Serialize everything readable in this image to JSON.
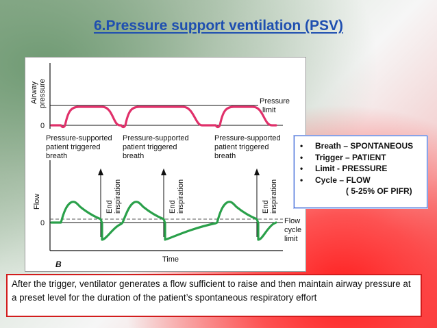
{
  "slide": {
    "title": "6.Pressure support ventilation (PSV)",
    "caption": "After the trigger, ventilator generates a flow sufficient to raise and then maintain airway pressure at a preset level for the duration of the patient’s spontaneous respiratory effort"
  },
  "bullets": {
    "items": [
      "Breath – SPONTANEOUS",
      "Trigger – PATIENT",
      "Limit - PRESSURE",
      "Cycle – FLOW"
    ],
    "cycle_note": "( 5-25% OF PIFR)"
  },
  "figure": {
    "panel_label": "B",
    "pressure": {
      "ylabel_line1": "Airway",
      "ylabel_line2": "pressure",
      "zero_label": "0",
      "limit_line1": "Pressure",
      "limit_line2": "limit",
      "breath_line1": "Pressure-supported",
      "breath_line2": "patient triggered",
      "breath_line3": "breath"
    },
    "flow": {
      "ylabel": "Flow",
      "zero_label": "0",
      "end_line1": "End",
      "end_line2": "inspiration",
      "cycle_line1": "Flow",
      "cycle_line2": "cycle",
      "cycle_line3": "limit"
    },
    "xlabel": "Time",
    "colors": {
      "waveform_pressure": "#e0306a",
      "waveform_flow": "#2aa04a",
      "axis": "#111111"
    }
  }
}
